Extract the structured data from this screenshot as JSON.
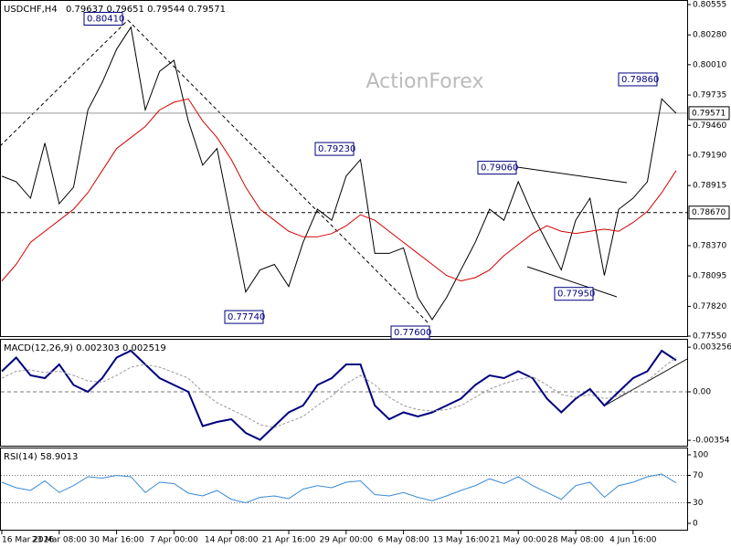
{
  "chart_data": [
    {
      "type": "line",
      "title": "USDCHF,H4",
      "subtitle": "0.79637 0.79651 0.79544 0.79571",
      "watermark": "ActionForex",
      "categories": [
        "16 Mar 2026",
        null,
        null,
        null,
        "23 Mar 08:00",
        null,
        null,
        null,
        "30 Mar 16:00",
        null,
        null,
        null,
        "7 Apr 00:00",
        null,
        null,
        null,
        "14 Apr 08:00",
        null,
        null,
        null,
        "21 Apr 16:00",
        null,
        null,
        null,
        "29 Apr 00:00",
        null,
        null,
        null,
        "6 May 08:00",
        null,
        null,
        null,
        "13 May 16:00",
        null,
        null,
        null,
        "21 May 00:00",
        null,
        null,
        null,
        "28 May 08:00",
        null,
        null,
        null,
        "4 Jun 16:00",
        null,
        null,
        null
      ],
      "series": [
        {
          "color": "#000000",
          "values": [
            0.79,
            0.7895,
            0.788,
            0.793,
            0.7875,
            0.789,
            0.796,
            0.7985,
            0.8015,
            0.8035,
            0.796,
            0.7995,
            0.8005,
            0.795,
            0.791,
            0.7925,
            0.786,
            0.7795,
            0.7815,
            0.782,
            0.78,
            0.784,
            0.787,
            0.786,
            0.79,
            0.7915,
            0.783,
            0.783,
            0.7835,
            0.779,
            0.777,
            0.779,
            0.7815,
            0.784,
            0.787,
            0.786,
            0.7895,
            0.7865,
            0.784,
            0.7815,
            0.786,
            0.788,
            0.781,
            0.787,
            0.788,
            0.7895,
            0.797,
            0.7957
          ]
        },
        {
          "color": "#d40000",
          "values": [
            0.7805,
            0.782,
            0.784,
            0.785,
            0.786,
            0.787,
            0.7885,
            0.7905,
            0.7925,
            0.7935,
            0.7945,
            0.796,
            0.7967,
            0.797,
            0.795,
            0.7935,
            0.7915,
            0.789,
            0.787,
            0.786,
            0.785,
            0.7845,
            0.7845,
            0.7848,
            0.7855,
            0.7865,
            0.786,
            0.785,
            0.784,
            0.783,
            0.782,
            0.781,
            0.7805,
            0.7808,
            0.7815,
            0.7828,
            0.7838,
            0.7848,
            0.7855,
            0.785,
            0.7848,
            0.785,
            0.7852,
            0.785,
            0.7858,
            0.7868,
            0.7885,
            0.7905
          ]
        }
      ],
      "ylim": [
        0.77542,
        0.80588
      ],
      "yticks": [
        0.80555,
        {
          "value": 0.8028,
          "label": "0.80280"
        },
        {
          "value": 0.8001,
          "label": "0.80010"
        },
        0.79735,
        {
          "value": 0.7946,
          "label": "0.79460"
        },
        {
          "value": 0.7919,
          "label": "0.79190"
        },
        0.78915,
        {
          "value": 0.7837,
          "label": "0.78370"
        },
        0.78095,
        {
          "value": 0.7782,
          "label": "0.77820"
        },
        {
          "value": 0.7755,
          "label": "0.77550"
        }
      ],
      "hlines": [
        {
          "value": 0.7867,
          "label": "0.78670"
        },
        {
          "value": 0.79571,
          "label": "0.79571"
        }
      ],
      "annotations": [
        {
          "value": 0.8041,
          "label": "0.80410"
        },
        {
          "value": 0.7774,
          "label": "0.77740"
        },
        {
          "value": 0.7923,
          "label": "0.79230"
        },
        {
          "value": 0.776,
          "label": "0.77600"
        },
        {
          "value": 0.7906,
          "label": "0.79060"
        },
        {
          "value": 0.7986,
          "label": "0.79860"
        },
        {
          "value": 0.7795,
          "label": "0.77950"
        }
      ]
    },
    {
      "type": "line",
      "title": "MACD(12,26,9) 0.002303 0.002519",
      "series": [
        {
          "color": "#00007f",
          "values": [
            0.0015,
            0.0025,
            0.0012,
            0.001,
            0.002,
            0.0005,
            0.0,
            0.001,
            0.0025,
            0.003,
            0.002,
            0.001,
            0.0005,
            0.0,
            -0.0025,
            -0.0022,
            -0.002,
            -0.003,
            -0.0035,
            -0.0025,
            -0.0015,
            -0.001,
            0.0005,
            0.001,
            0.002,
            0.002,
            -0.001,
            -0.002,
            -0.0015,
            -0.0018,
            -0.0015,
            -0.001,
            -0.0005,
            0.0005,
            0.0012,
            0.001,
            0.0015,
            0.001,
            -0.0005,
            -0.0015,
            -0.0005,
            0.0002,
            -0.001,
            0.0,
            0.001,
            0.0015,
            0.003,
            0.0023
          ]
        },
        {
          "color": "#999999",
          "values": [
            0.001,
            0.0015,
            0.0016,
            0.0014,
            0.0015,
            0.0012,
            0.0008,
            0.0007,
            0.0012,
            0.0018,
            0.002,
            0.0018,
            0.0014,
            0.001,
            0.0,
            -0.0008,
            -0.0013,
            -0.0018,
            -0.0024,
            -0.0026,
            -0.0022,
            -0.0018,
            -0.001,
            -0.0003,
            0.0006,
            0.0012,
            0.0005,
            -0.0004,
            -0.001,
            -0.0013,
            -0.0014,
            -0.0013,
            -0.001,
            -0.0004,
            0.0002,
            0.0006,
            0.0009,
            0.0011,
            0.0005,
            -0.0002,
            -0.0004,
            -0.0002,
            -0.0005,
            -0.0003,
            0.0002,
            0.0008,
            0.0017,
            0.0025
          ]
        }
      ],
      "ylim": [
        -0.004,
        0.0038
      ],
      "yticks": [
        0.003256,
        {
          "value": 0,
          "label": "0.00"
        },
        -0.00354
      ]
    },
    {
      "type": "line",
      "title": "RSI(14) 58.9013",
      "series": [
        {
          "color": "#3a8ad6",
          "values": [
            60,
            52,
            48,
            62,
            45,
            55,
            68,
            66,
            70,
            68,
            45,
            60,
            58,
            44,
            40,
            48,
            35,
            30,
            38,
            40,
            36,
            50,
            55,
            52,
            60,
            62,
            42,
            40,
            45,
            38,
            33,
            40,
            48,
            55,
            65,
            58,
            68,
            55,
            45,
            35,
            55,
            60,
            38,
            55,
            60,
            68,
            72,
            59
          ]
        }
      ],
      "ylim": [
        -10.7,
        109.3
      ],
      "yticks": [
        100,
        70,
        30,
        0
      ]
    }
  ]
}
